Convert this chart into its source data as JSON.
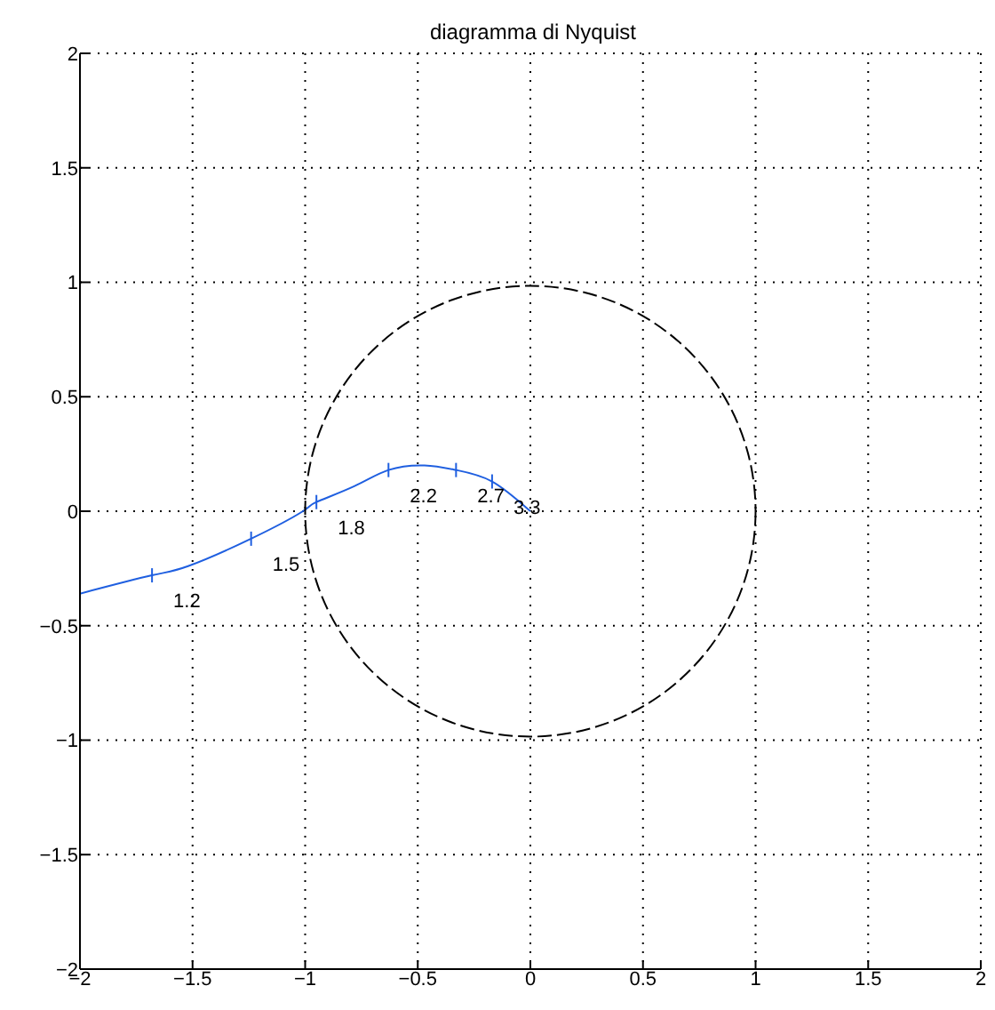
{
  "chart_data": {
    "type": "line",
    "title": "diagramma di Nyquist",
    "series": [
      {
        "color": "#1f5fe0",
        "line_style": "solid",
        "x": [
          -2,
          -1.68,
          -1.52,
          -1.24,
          -1.01,
          -0.95,
          -0.78,
          -0.63,
          -0.47,
          -0.33,
          -0.17,
          0
        ],
        "values": [
          -0.36,
          -0.28,
          -0.24,
          -0.12,
          0,
          0.04,
          0.11,
          0.18,
          0.2,
          0.18,
          0.13,
          0
        ]
      }
    ],
    "annotations": [
      {
        "text": "1.2",
        "x": -1.68,
        "y": -0.28
      },
      {
        "text": "1.5",
        "x": -1.24,
        "y": -0.12
      },
      {
        "text": "1.8",
        "x": -0.95,
        "y": 0.04
      },
      {
        "text": "2.2",
        "x": -0.63,
        "y": 0.18
      },
      {
        "text": "2.7",
        "x": -0.33,
        "y": 0.18
      },
      {
        "text": "3.3",
        "x": -0.17,
        "y": 0.13
      }
    ],
    "xlim": [
      -2,
      2
    ],
    "xticks": [
      -2,
      -1.5,
      -1,
      -0.5,
      0,
      0.5,
      1,
      1.5,
      2
    ],
    "ylim": [
      -2,
      2
    ],
    "yticks": [
      -2,
      -1.5,
      -1,
      -0.5,
      0,
      0.5,
      1,
      1.5,
      2
    ],
    "grid": true,
    "marker": "none"
  }
}
